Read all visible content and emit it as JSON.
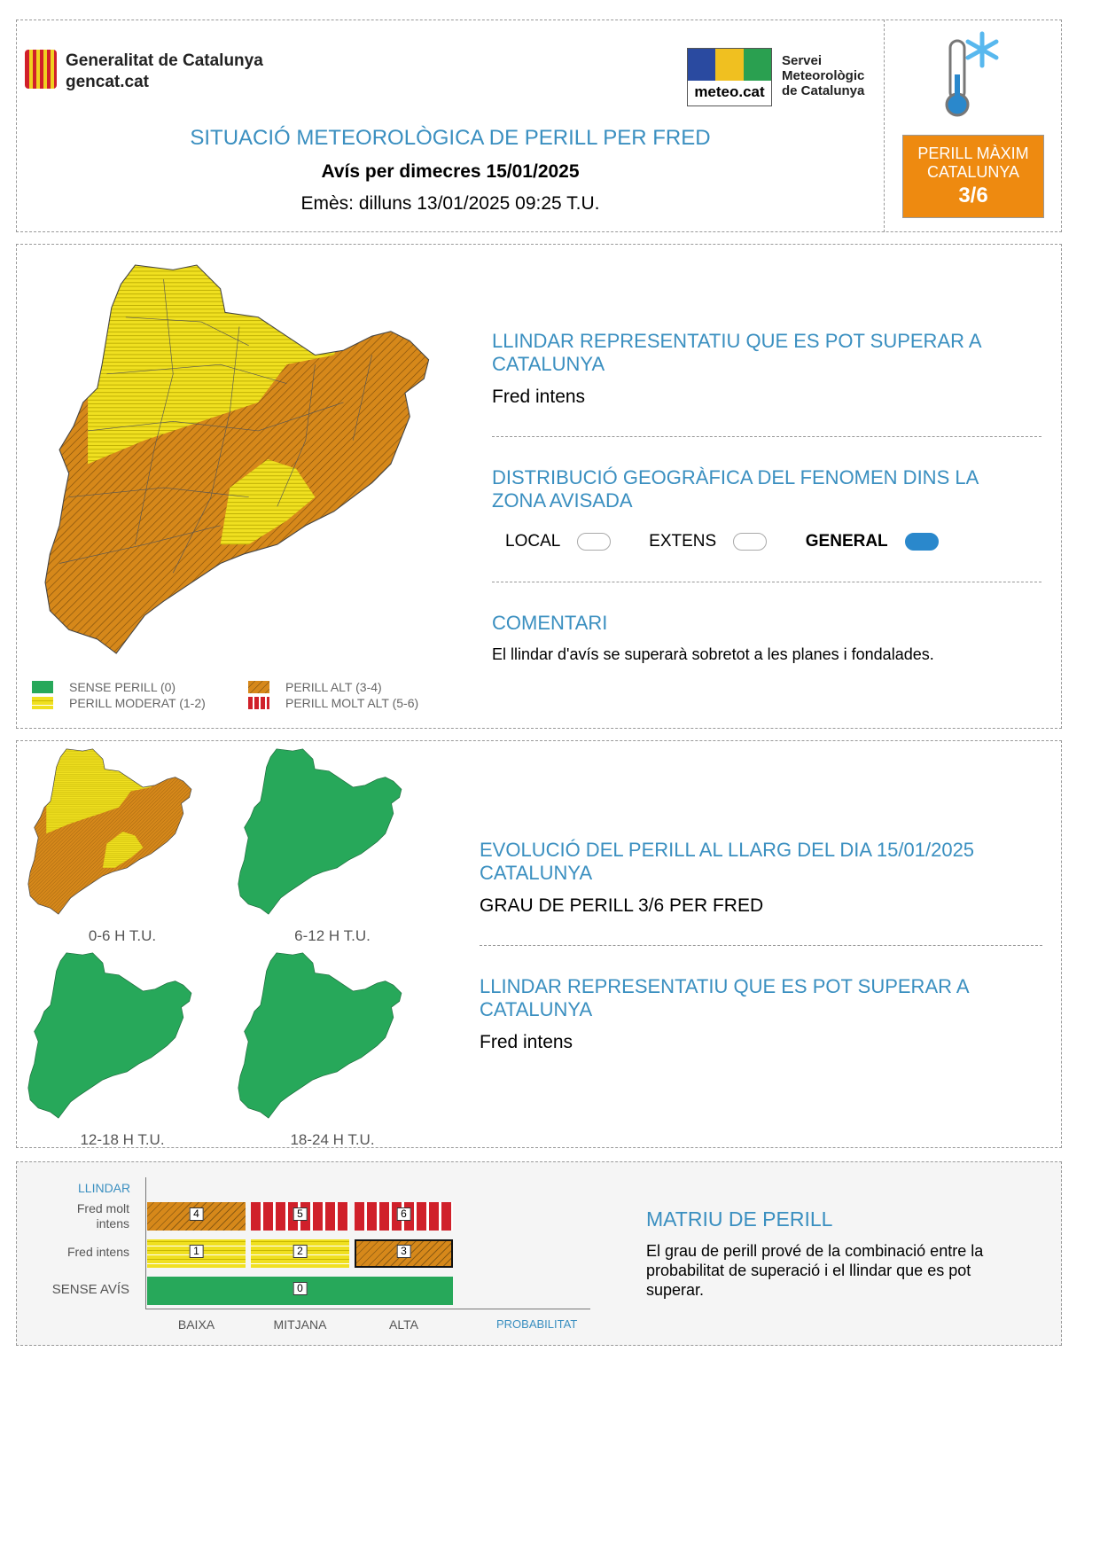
{
  "header": {
    "gencat_name": "Generalitat de Catalunya",
    "gencat_url": "gencat.cat",
    "meteo_logo": "meteo.cat",
    "smc_lines": [
      "Servei",
      "Meteorològic",
      "de Catalunya"
    ],
    "title": "SITUACIÓ METEOROLÒGICA DE PERILL PER FRED",
    "subtitle": "Avís per dimecres 15/01/2025",
    "issued": "Emès: dilluns 13/01/2025 09:25 T.U.",
    "max_label_1": "PERILL MÀXIM",
    "max_label_2": "CATALUNYA",
    "max_value": "3/6",
    "max_color": "#ee8a10",
    "icon": "thermometer-snowflake-icon"
  },
  "map_section": {
    "threshold_title": "LLINDAR REPRESENTATIU QUE ES POT SUPERAR A CATALUNYA",
    "threshold_value": "Fred intens",
    "distribution_title": "DISTRIBUCIÓ GEOGRÀFICA DEL FENOMEN DINS LA ZONA AVISADA",
    "distribution_options": [
      {
        "label": "LOCAL",
        "selected": false
      },
      {
        "label": "EXTENS",
        "selected": false
      },
      {
        "label": "GENERAL",
        "selected": true
      }
    ],
    "comment_title": "COMENTARI",
    "comment_text": "El llindar d'avís se superarà sobretot a les planes i fondalades.",
    "legend": [
      {
        "label": "SENSE PERILL (0)",
        "color": "#27a85a"
      },
      {
        "label": "PERILL MODERAT (1-2)",
        "color": "#f0e020"
      },
      {
        "label": "PERILL ALT (3-4)",
        "color": "#d6881a"
      },
      {
        "label": "PERILL MOLT ALT (5-6)",
        "color": "#d0202a"
      }
    ]
  },
  "evolution": {
    "maps": [
      {
        "label": "0-6 H T.U.",
        "state": "mixed"
      },
      {
        "label": "6-12 H T.U.",
        "state": "green"
      },
      {
        "label": "12-18 H T.U.",
        "state": "green"
      },
      {
        "label": "18-24 H T.U.",
        "state": "green"
      }
    ],
    "title": "EVOLUCIÓ DEL PERILL AL LLARG DEL DIA 15/01/2025 CATALUNYA",
    "degree": "GRAU DE PERILL 3/6 PER FRED",
    "threshold_title": "LLINDAR REPRESENTATIU QUE ES POT SUPERAR A CATALUNYA",
    "threshold_value": "Fred intens"
  },
  "matrix": {
    "y_title": "LLINDAR",
    "rows": [
      "Fred molt intens",
      "Fred intens",
      "SENSE AVÍS"
    ],
    "row1_a": "Fred molt",
    "row1_b": "intens",
    "x_labels": [
      "BAIXA",
      "MITJANA",
      "ALTA"
    ],
    "x_title": "PROBABILITAT",
    "cells_top": [
      "4",
      "5",
      "6"
    ],
    "cells_mid": [
      "1",
      "2",
      "3"
    ],
    "cell_none": "0",
    "title": "MATRIU DE PERILL",
    "text": "El grau de perill prové de la combinació entre la probabilitat de superació i el llindar que es pot superar."
  }
}
